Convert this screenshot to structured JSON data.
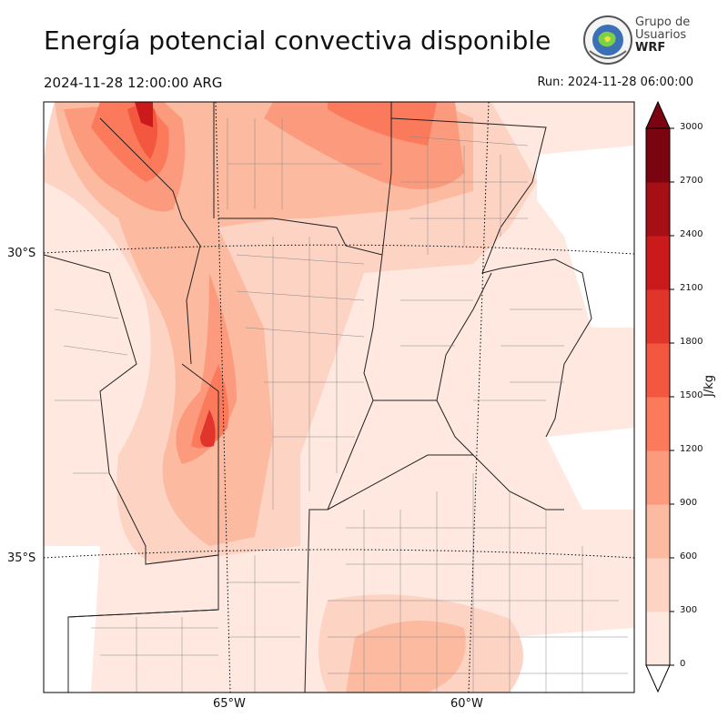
{
  "header": {
    "title": "Energía potencial convectiva disponible",
    "valid_time": "2024-11-28 12:00:00 ARG",
    "run_time": "Run: 2024-11-28 06:00:00"
  },
  "logo": {
    "line1": "Grupo de",
    "line2": "Usuarios",
    "line3": "WRF"
  },
  "map": {
    "lat_labels": [
      "30°S",
      "35°S"
    ],
    "lon_labels": [
      "65°W",
      "60°W"
    ]
  },
  "colorbar": {
    "units": "J/kg",
    "ticks": [
      "0",
      "300",
      "600",
      "900",
      "1200",
      "1500",
      "1800",
      "2100",
      "2400",
      "2700",
      "3000"
    ],
    "colors": [
      "#fee8e0",
      "#fdd3c4",
      "#fcbba0",
      "#fc9a7e",
      "#fb7a5c",
      "#f3573f",
      "#e1352c",
      "#cb1a1c",
      "#a50f15",
      "#7a0510"
    ]
  }
}
